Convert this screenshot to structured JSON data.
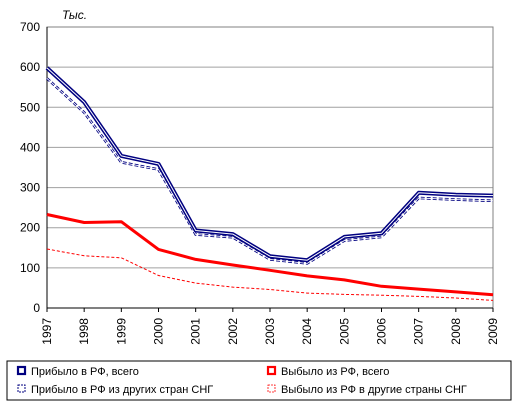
{
  "chart_data": {
    "type": "line",
    "unit_label": "Тыс.",
    "x": [
      "1997",
      "1998",
      "1999",
      "2000",
      "2001",
      "2002",
      "2003",
      "2004",
      "2005",
      "2006",
      "2007",
      "2008",
      "2009"
    ],
    "ylim": [
      0,
      700
    ],
    "yticks": [
      0,
      100,
      200,
      300,
      400,
      500,
      600,
      700
    ],
    "grid": true,
    "legend_position": "bottom",
    "series": [
      {
        "name": "Прибыло в РФ, всего",
        "color": "#000080",
        "style": "double-solid",
        "values": [
          598,
          513,
          379,
          359,
          193,
          184,
          129,
          119,
          177,
          186,
          287,
          282,
          280
        ]
      },
      {
        "name": "Прибыло в РФ из других стран СНГ",
        "color": "#000080",
        "style": "double-dashed",
        "values": [
          572,
          487,
          363,
          345,
          183,
          176,
          121,
          111,
          168,
          177,
          274,
          270,
          267
        ]
      },
      {
        "name": "Выбыло из РФ, всего",
        "color": "#ff0000",
        "style": "solid",
        "values": [
          233,
          213,
          215,
          146,
          121,
          107,
          94,
          80,
          70,
          54,
          47,
          40,
          33
        ]
      },
      {
        "name": "Выбыло из РФ в другие страны СНГ",
        "color": "#ff0000",
        "style": "dashed",
        "values": [
          147,
          130,
          125,
          81,
          62,
          52,
          46,
          37,
          34,
          32,
          29,
          25,
          19
        ]
      }
    ]
  }
}
